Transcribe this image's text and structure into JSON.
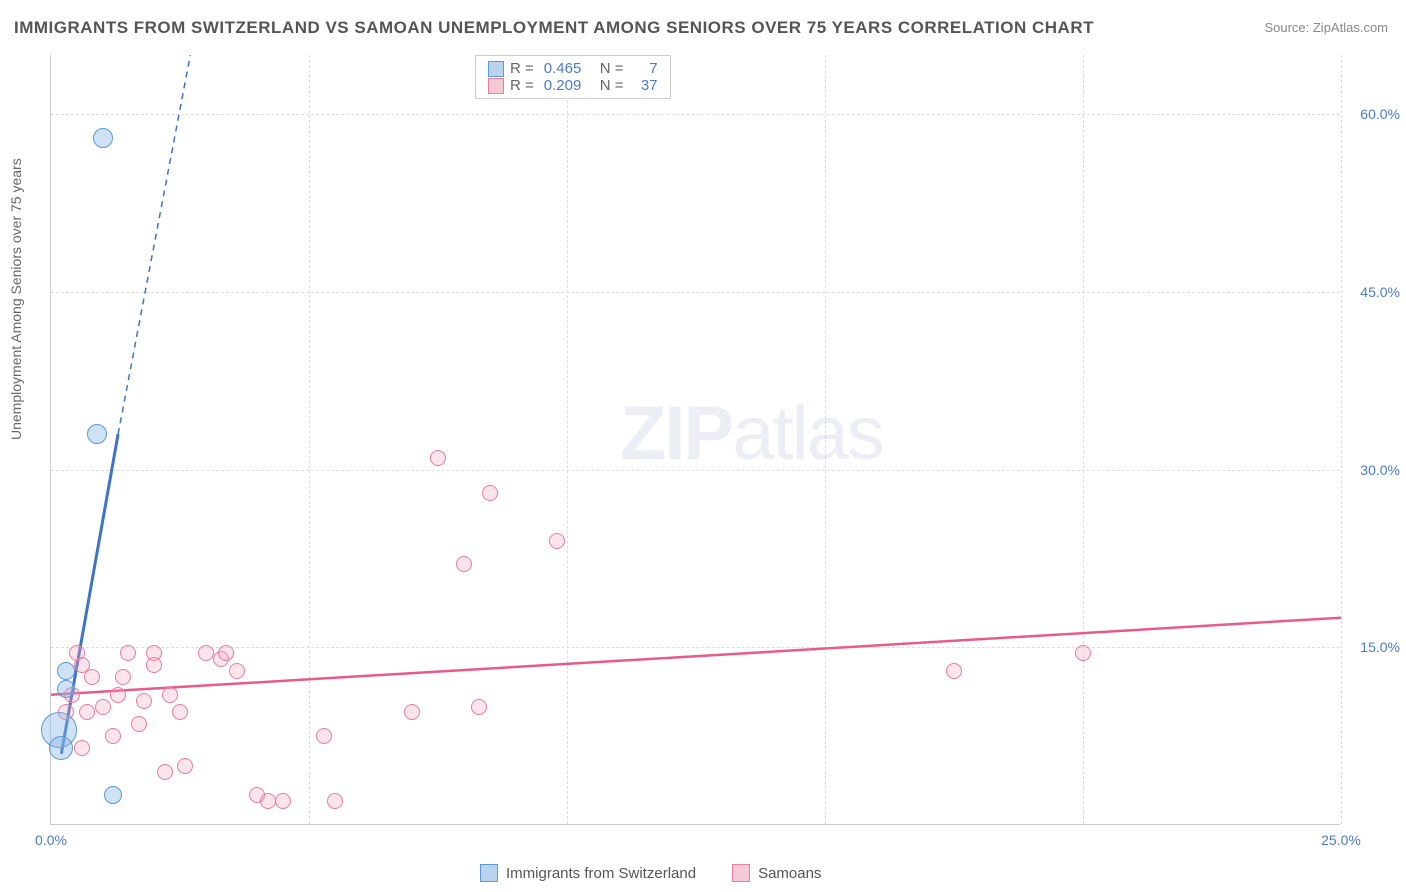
{
  "title": "IMMIGRANTS FROM SWITZERLAND VS SAMOAN UNEMPLOYMENT AMONG SENIORS OVER 75 YEARS CORRELATION CHART",
  "source": "Source: ZipAtlas.com",
  "watermark_a": "ZIP",
  "watermark_b": "atlas",
  "chart": {
    "type": "scatter",
    "xlim": [
      0,
      25
    ],
    "ylim": [
      0,
      65
    ],
    "x_ticks": [
      0,
      5,
      10,
      15,
      20,
      25
    ],
    "y_ticks": [
      15,
      30,
      45,
      60
    ],
    "x_tick_labels": [
      "0.0%",
      "",
      "",
      "",
      "",
      "25.0%"
    ],
    "y_tick_labels": [
      "15.0%",
      "30.0%",
      "45.0%",
      "60.0%"
    ],
    "y_axis_title": "Unemployment Among Seniors over 75 years",
    "grid_color": "#dddddd",
    "axis_color": "#cccccc",
    "label_color": "#4a7bc8",
    "series_a": {
      "name": "Immigrants from Switzerland",
      "fill": "rgba(135,181,230,0.4)",
      "stroke": "#5a9bd5",
      "swatch_fill": "#b9d3ef",
      "swatch_stroke": "#5a9bd5",
      "R_label": "R =",
      "R": "0.465",
      "N_label": "N =",
      "N": "7",
      "trend": {
        "x1": 0.2,
        "y1": 6,
        "x2": 1.3,
        "y2": 33,
        "dash_x1": 1.3,
        "dash_y1": 33,
        "dash_x2": 2.7,
        "dash_y2": 65,
        "color": "#3e74c4",
        "width": 3
      },
      "points": [
        {
          "x": 1.0,
          "y": 58,
          "r": 10
        },
        {
          "x": 0.9,
          "y": 33,
          "r": 10
        },
        {
          "x": 0.3,
          "y": 13,
          "r": 9
        },
        {
          "x": 0.3,
          "y": 11.5,
          "r": 9
        },
        {
          "x": 0.15,
          "y": 8,
          "r": 18
        },
        {
          "x": 0.2,
          "y": 6.5,
          "r": 12
        },
        {
          "x": 1.2,
          "y": 2.5,
          "r": 9
        }
      ]
    },
    "series_b": {
      "name": "Samoans",
      "fill": "rgba(244,166,188,0.3)",
      "stroke": "#e87ca0",
      "swatch_fill": "#f6c9d7",
      "swatch_stroke": "#e87ca0",
      "R_label": "R =",
      "R": "0.209",
      "N_label": "N =",
      "N": "37",
      "trend": {
        "x1": 0,
        "y1": 11,
        "x2": 25,
        "y2": 17.5,
        "color": "#e85a8c",
        "width": 2.5
      },
      "points": [
        {
          "x": 0.5,
          "y": 14.5,
          "r": 8
        },
        {
          "x": 1.5,
          "y": 14.5,
          "r": 8
        },
        {
          "x": 0.6,
          "y": 13.5,
          "r": 8
        },
        {
          "x": 1.0,
          "y": 10,
          "r": 8
        },
        {
          "x": 0.4,
          "y": 11,
          "r": 8
        },
        {
          "x": 1.3,
          "y": 11,
          "r": 8
        },
        {
          "x": 0.7,
          "y": 9.5,
          "r": 8
        },
        {
          "x": 0.3,
          "y": 9.5,
          "r": 8
        },
        {
          "x": 1.2,
          "y": 7.5,
          "r": 8
        },
        {
          "x": 0.6,
          "y": 6.5,
          "r": 8
        },
        {
          "x": 1.7,
          "y": 8.5,
          "r": 8
        },
        {
          "x": 2.0,
          "y": 14.5,
          "r": 8
        },
        {
          "x": 2.3,
          "y": 11,
          "r": 8
        },
        {
          "x": 2.6,
          "y": 5,
          "r": 8
        },
        {
          "x": 2.2,
          "y": 4.5,
          "r": 8
        },
        {
          "x": 2.0,
          "y": 13.5,
          "r": 8
        },
        {
          "x": 3.0,
          "y": 14.5,
          "r": 8
        },
        {
          "x": 3.3,
          "y": 14,
          "r": 8
        },
        {
          "x": 3.4,
          "y": 14.5,
          "r": 8
        },
        {
          "x": 3.6,
          "y": 13,
          "r": 8
        },
        {
          "x": 4.0,
          "y": 2.5,
          "r": 8
        },
        {
          "x": 4.2,
          "y": 2,
          "r": 8
        },
        {
          "x": 4.5,
          "y": 2,
          "r": 8
        },
        {
          "x": 5.3,
          "y": 7.5,
          "r": 8
        },
        {
          "x": 5.5,
          "y": 2,
          "r": 8
        },
        {
          "x": 7.0,
          "y": 9.5,
          "r": 8
        },
        {
          "x": 7.5,
          "y": 31,
          "r": 8
        },
        {
          "x": 8.0,
          "y": 22,
          "r": 8
        },
        {
          "x": 8.3,
          "y": 10,
          "r": 8
        },
        {
          "x": 8.5,
          "y": 28,
          "r": 8
        },
        {
          "x": 9.8,
          "y": 24,
          "r": 8
        },
        {
          "x": 17.5,
          "y": 13,
          "r": 8
        },
        {
          "x": 20.0,
          "y": 14.5,
          "r": 8
        },
        {
          "x": 1.8,
          "y": 10.5,
          "r": 8
        },
        {
          "x": 1.4,
          "y": 12.5,
          "r": 8
        },
        {
          "x": 0.8,
          "y": 12.5,
          "r": 8
        },
        {
          "x": 2.5,
          "y": 9.5,
          "r": 8
        }
      ]
    }
  }
}
